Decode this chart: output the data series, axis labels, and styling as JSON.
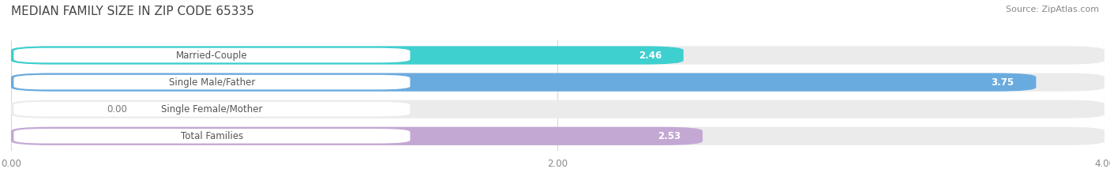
{
  "title": "MEDIAN FAMILY SIZE IN ZIP CODE 65335",
  "source": "Source: ZipAtlas.com",
  "categories": [
    "Married-Couple",
    "Single Male/Father",
    "Single Female/Mother",
    "Total Families"
  ],
  "values": [
    2.46,
    3.75,
    0.0,
    2.53
  ],
  "bar_colors": [
    "#3ecfcf",
    "#6aabdf",
    "#f4a7b9",
    "#c4a8d4"
  ],
  "xlim": [
    -0.02,
    4.0
  ],
  "xticks": [
    0.0,
    2.0,
    4.0
  ],
  "xtick_labels": [
    "0.00",
    "2.00",
    "4.00"
  ],
  "bar_height": 0.68,
  "value_fontsize": 8.5,
  "label_fontsize": 8.5,
  "title_fontsize": 11,
  "source_fontsize": 8,
  "background_color": "#ffffff",
  "bar_bg_color": "#ebebeb",
  "label_pill_color": "#ffffff",
  "grid_color": "#d8d8d8",
  "text_color": "#555555",
  "value_color_inside": "#ffffff",
  "value_color_outside": "#777777"
}
